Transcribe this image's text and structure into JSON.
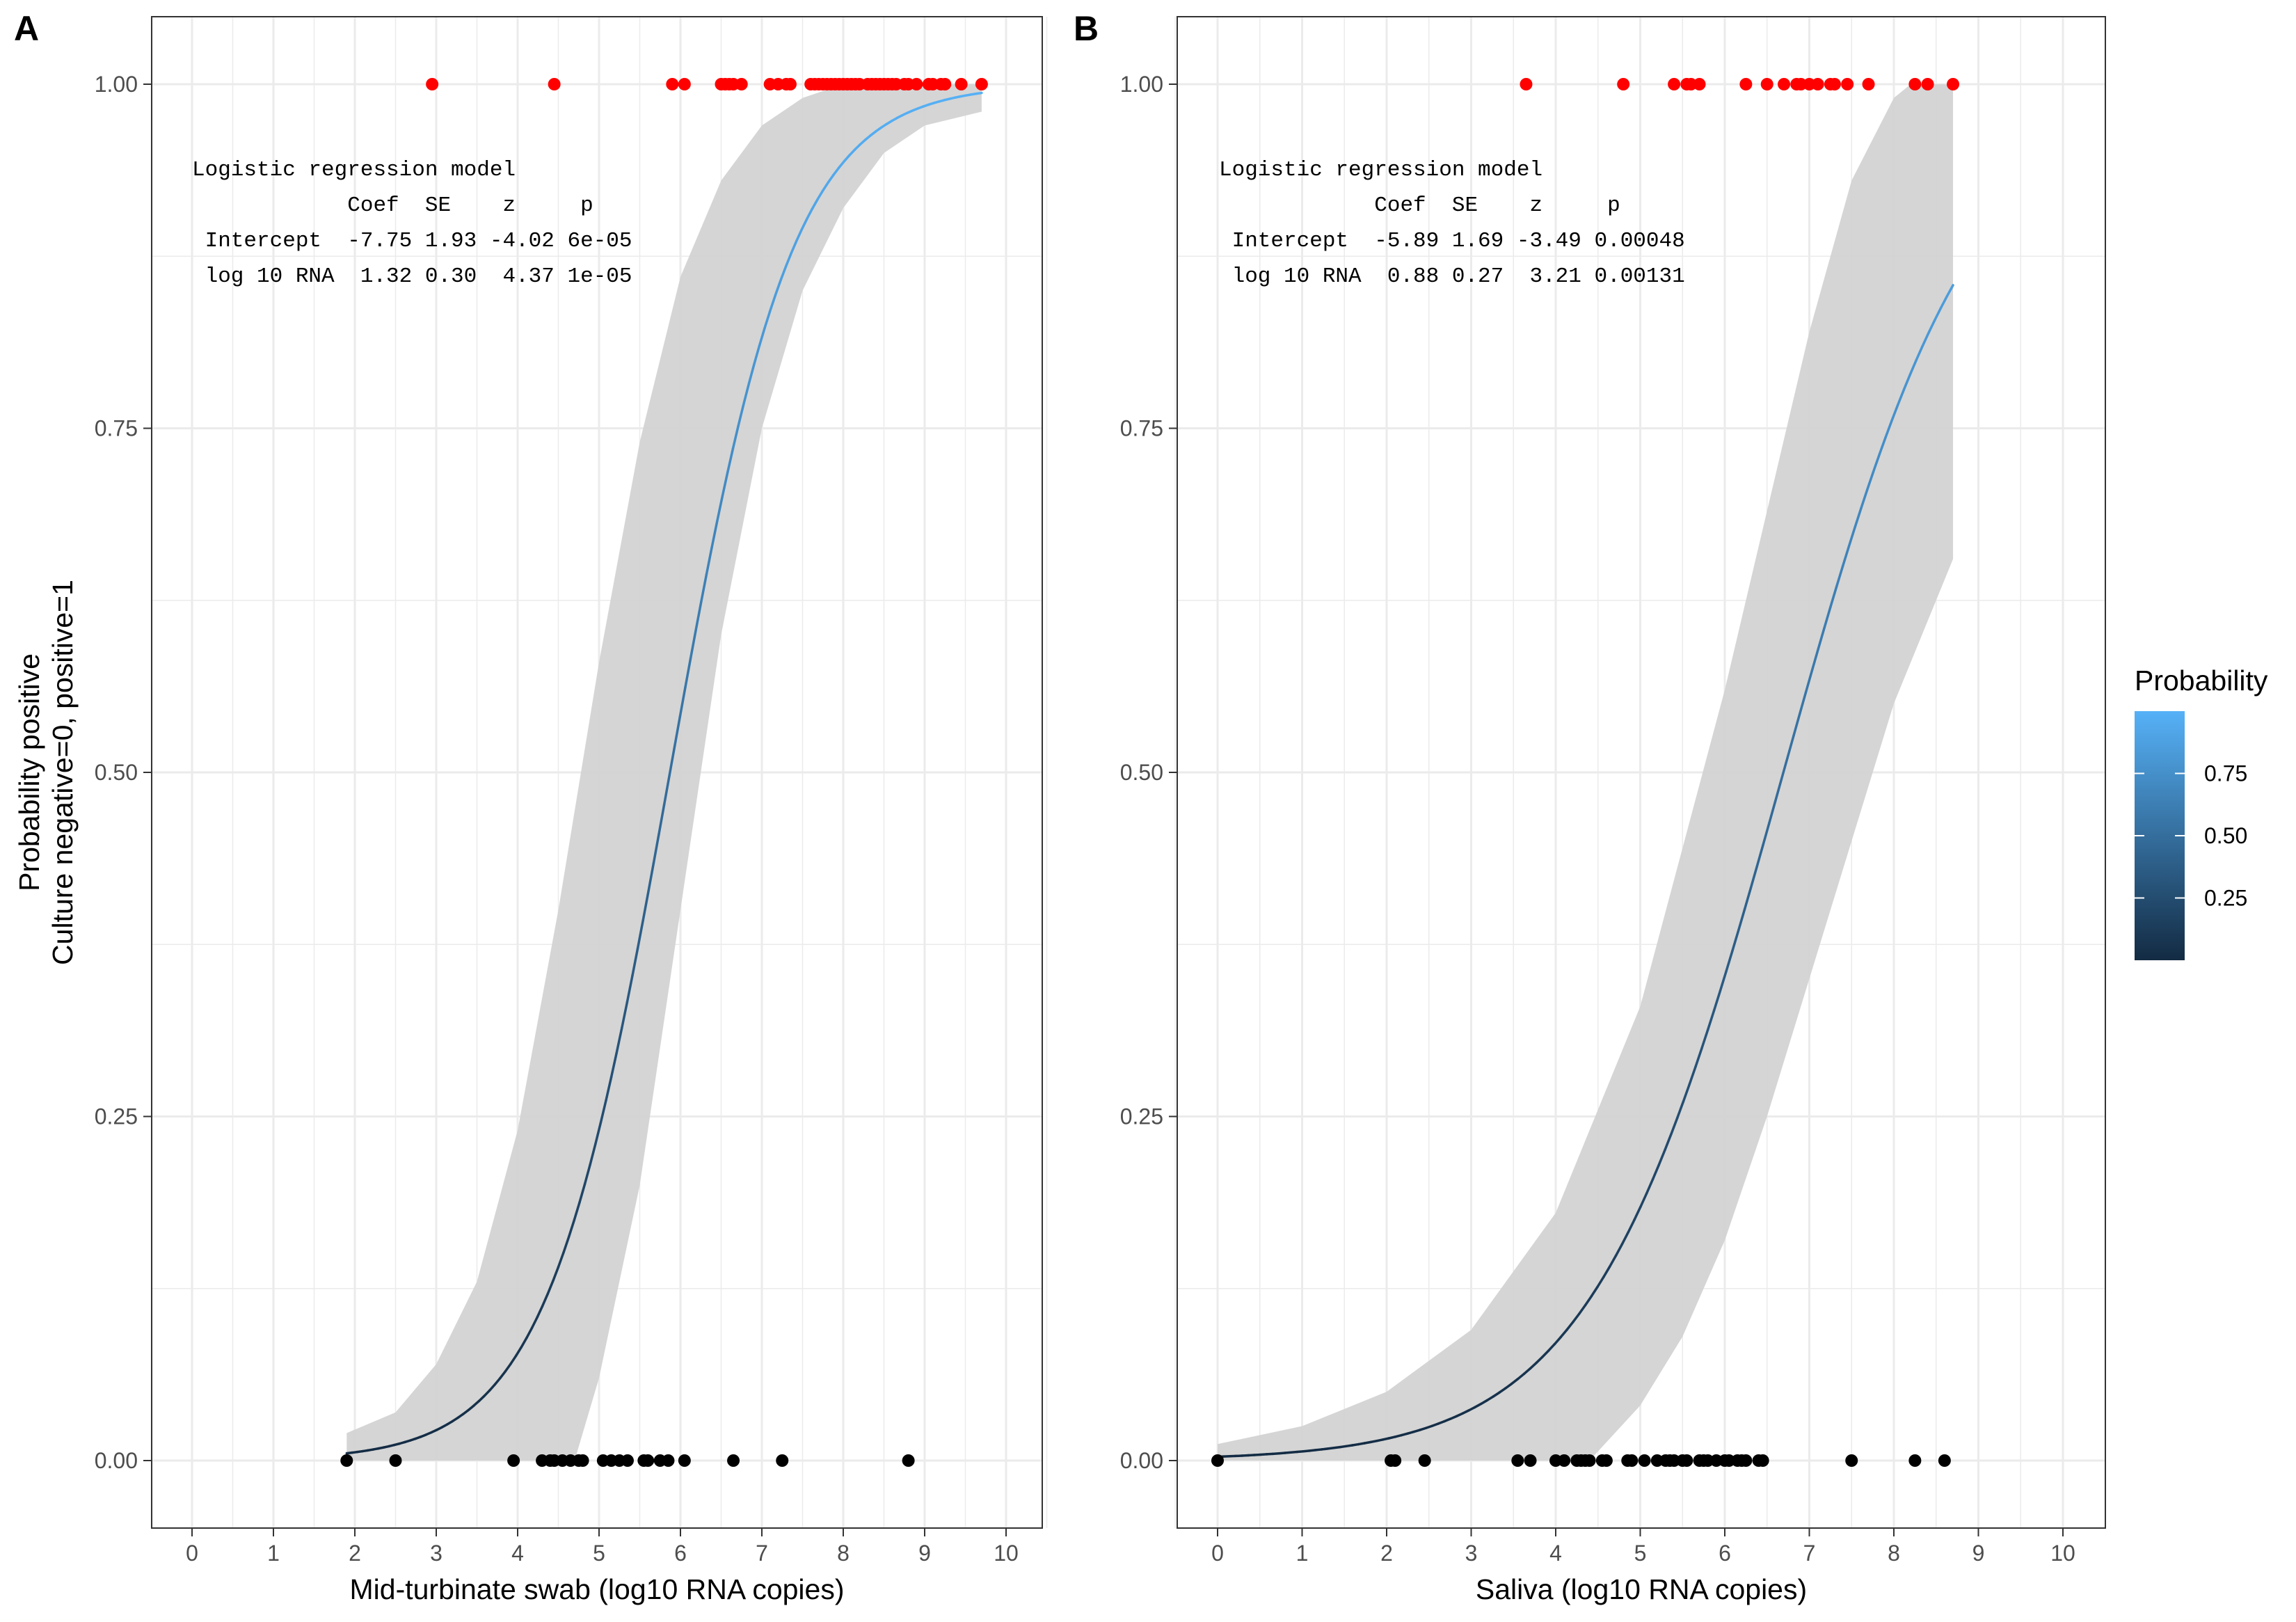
{
  "chart_data": [
    {
      "type": "scatter",
      "panel_label": "A",
      "xlabel": "Mid-turbinate swab (log10 RNA copies)",
      "ylabel": [
        "Probability positive",
        "Culture negative=0, positive=1"
      ],
      "xlim": [
        0,
        10
      ],
      "ylim": [
        0,
        1
      ],
      "x_ticks": [
        "0",
        "1",
        "2",
        "3",
        "4",
        "5",
        "6",
        "7",
        "8",
        "9",
        "10"
      ],
      "y_ticks": [
        "0.00",
        "0.25",
        "0.50",
        "0.75",
        "1.00"
      ],
      "grid": true,
      "points_positive": {
        "y": 1,
        "color": "#ff0000",
        "x": [
          2.95,
          4.45,
          5.9,
          6.05,
          6.5,
          6.55,
          6.6,
          6.65,
          6.75,
          7.1,
          7.2,
          7.3,
          7.35,
          7.6,
          7.65,
          7.7,
          7.75,
          7.8,
          7.85,
          7.9,
          7.95,
          8.0,
          8.05,
          8.1,
          8.15,
          8.2,
          8.3,
          8.35,
          8.4,
          8.45,
          8.5,
          8.55,
          8.6,
          8.65,
          8.75,
          8.8,
          8.9,
          9.05,
          9.1,
          9.2,
          9.25,
          9.45,
          9.7
        ]
      },
      "points_negative": {
        "y": 0,
        "color": "#000000",
        "x": [
          1.9,
          2.5,
          3.95,
          4.3,
          4.4,
          4.45,
          4.55,
          4.65,
          4.75,
          4.8,
          5.05,
          5.15,
          5.25,
          5.35,
          5.55,
          5.6,
          5.75,
          5.85,
          6.05,
          6.65,
          7.25,
          8.8
        ]
      },
      "fit": {
        "intercept": -7.75,
        "slope": 1.32,
        "x_range": [
          1.9,
          9.7
        ],
        "ci_band": [
          [
            1.9,
            0.02
          ],
          [
            2.5,
            0.035
          ],
          [
            3.0,
            0.07
          ],
          [
            3.5,
            0.13
          ],
          [
            4.0,
            0.24
          ],
          [
            4.5,
            0.4
          ],
          [
            5.0,
            0.58
          ],
          [
            5.5,
            0.74
          ],
          [
            6.0,
            0.86
          ],
          [
            6.5,
            0.93
          ],
          [
            7.0,
            0.97
          ],
          [
            7.5,
            0.99
          ],
          [
            8.0,
            1.0
          ],
          [
            9.7,
            1.0
          ]
        ],
        "ci_band_lower": [
          [
            1.9,
            0.0
          ],
          [
            4.7,
            0.0
          ],
          [
            5.0,
            0.06
          ],
          [
            5.5,
            0.2
          ],
          [
            6.0,
            0.4
          ],
          [
            6.5,
            0.6
          ],
          [
            7.0,
            0.75
          ],
          [
            7.5,
            0.85
          ],
          [
            8.0,
            0.91
          ],
          [
            8.5,
            0.95
          ],
          [
            9.0,
            0.97
          ],
          [
            9.7,
            0.98
          ]
        ]
      },
      "annotation": [
        "Logistic regression model",
        "            Coef  SE    z     p",
        " Intercept  -7.75 1.93 -4.02 6e-05",
        " log 10 RNA  1.32 0.30  4.37 1e-05"
      ]
    },
    {
      "type": "scatter",
      "panel_label": "B",
      "xlabel": "Saliva (log10 RNA copies)",
      "xlim": [
        0,
        10
      ],
      "ylim": [
        0,
        1
      ],
      "x_ticks": [
        "0",
        "1",
        "2",
        "3",
        "4",
        "5",
        "6",
        "7",
        "8",
        "9",
        "10"
      ],
      "y_ticks": [
        "0.00",
        "0.25",
        "0.50",
        "0.75",
        "1.00"
      ],
      "grid": true,
      "points_positive": {
        "y": 1,
        "color": "#ff0000",
        "x": [
          3.65,
          4.8,
          5.4,
          5.55,
          5.6,
          5.7,
          6.25,
          6.5,
          6.7,
          6.85,
          6.9,
          7.0,
          7.1,
          7.25,
          7.3,
          7.45,
          7.7,
          8.25,
          8.4,
          8.7
        ]
      },
      "points_negative": {
        "y": 0,
        "color": "#000000",
        "x": [
          0.0,
          2.05,
          2.1,
          2.45,
          3.55,
          3.7,
          4.0,
          4.1,
          4.25,
          4.3,
          4.35,
          4.4,
          4.55,
          4.6,
          4.85,
          4.9,
          5.05,
          5.2,
          5.3,
          5.35,
          5.4,
          5.5,
          5.55,
          5.7,
          5.75,
          5.8,
          5.9,
          6.0,
          6.05,
          6.15,
          6.2,
          6.25,
          6.4,
          6.45,
          7.5,
          8.25,
          8.6
        ]
      },
      "fit": {
        "intercept": -5.89,
        "slope": 0.88,
        "x_range": [
          0,
          8.7
        ],
        "ci_band": [
          [
            0,
            0.012
          ],
          [
            1,
            0.025
          ],
          [
            2,
            0.05
          ],
          [
            3,
            0.095
          ],
          [
            4,
            0.18
          ],
          [
            5,
            0.33
          ],
          [
            6,
            0.56
          ],
          [
            7,
            0.82
          ],
          [
            7.5,
            0.93
          ],
          [
            8,
            0.99
          ],
          [
            8.2,
            1.0
          ],
          [
            8.7,
            1.0
          ]
        ],
        "ci_band_lower": [
          [
            0,
            0.0
          ],
          [
            4.4,
            0.0
          ],
          [
            5,
            0.04
          ],
          [
            5.5,
            0.09
          ],
          [
            6,
            0.16
          ],
          [
            6.5,
            0.25
          ],
          [
            7,
            0.35
          ],
          [
            7.5,
            0.45
          ],
          [
            8,
            0.55
          ],
          [
            8.7,
            0.655
          ]
        ]
      },
      "annotation": [
        "Logistic regression model",
        "            Coef  SE    z     p",
        " Intercept  -5.89 1.69 -3.49 0.00048",
        " log 10 RNA  0.88 0.27  3.21 0.00131"
      ]
    }
  ],
  "legend": {
    "title": "Probability",
    "placement": "right",
    "ticks": [
      "0.75",
      "0.50",
      "0.25"
    ],
    "tick_values": [
      0.75,
      0.5,
      0.25
    ],
    "range": [
      0,
      1
    ],
    "color_low": "#132b43",
    "color_high": "#56b1f7"
  },
  "colors": {
    "ci_band": "#d3d3d3",
    "grid_major": "#ebebeb",
    "panel_border": "#333333"
  }
}
